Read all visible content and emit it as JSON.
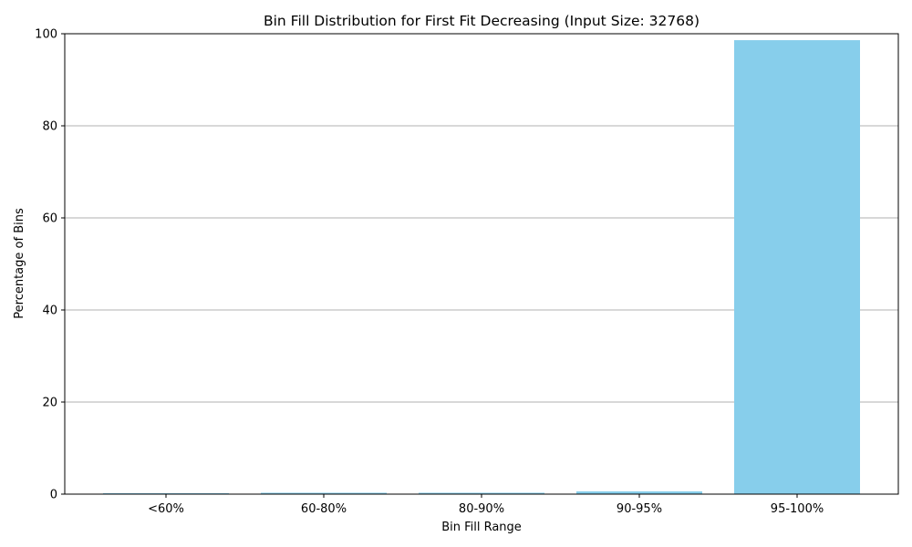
{
  "chart_data": {
    "type": "bar",
    "title": "Bin Fill Distribution for First Fit Decreasing (Input Size: 32768)",
    "xlabel": "Bin Fill Range",
    "ylabel": "Percentage of Bins",
    "categories": [
      "<60%",
      "60-80%",
      "80-90%",
      "90-95%",
      "95-100%"
    ],
    "values": [
      0.2,
      0.3,
      0.3,
      0.6,
      98.6
    ],
    "ylim": [
      0,
      100
    ],
    "yticks": [
      0,
      20,
      40,
      60,
      80,
      100
    ],
    "grid": "y-axis",
    "bar_color": "#87ceeb",
    "grid_color": "#b0b0b0"
  }
}
